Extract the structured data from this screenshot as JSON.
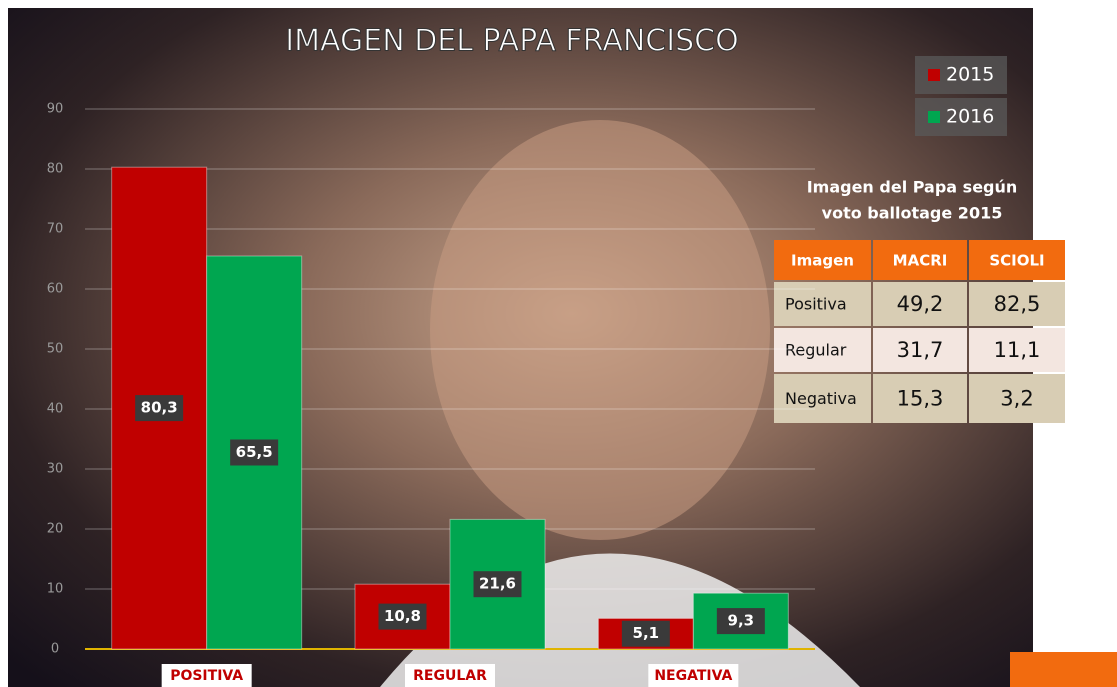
{
  "chart_data": {
    "type": "bar",
    "title": "IMAGEN DEL PAPA FRANCISCO",
    "categories": [
      "POSITIVA",
      "REGULAR",
      "NEGATIVA"
    ],
    "series": [
      {
        "name": "2015",
        "color": "#c00000",
        "values": [
          80.3,
          10.8,
          5.1
        ],
        "value_labels": [
          "80,3",
          "10,8",
          "5,1"
        ]
      },
      {
        "name": "2016",
        "color": "#00a650",
        "values": [
          65.5,
          21.6,
          9.3
        ],
        "value_labels": [
          "65,5",
          "21,6",
          "9,3"
        ]
      }
    ],
    "ylim": [
      0,
      90
    ],
    "yticks": [
      0,
      10,
      20,
      30,
      40,
      50,
      60,
      70,
      80,
      90
    ],
    "grid": true,
    "legend": "top-right"
  },
  "table": {
    "title": [
      "Imagen del Papa según",
      "voto ballotage 2015"
    ],
    "header": [
      "Imagen",
      "MACRI",
      "SCIOLI"
    ],
    "rows": [
      [
        "Positiva",
        "49,2",
        "82,5"
      ],
      [
        "Regular",
        "31,7",
        "11,1"
      ],
      [
        "Negativa",
        "15,3",
        "3,2"
      ]
    ]
  }
}
